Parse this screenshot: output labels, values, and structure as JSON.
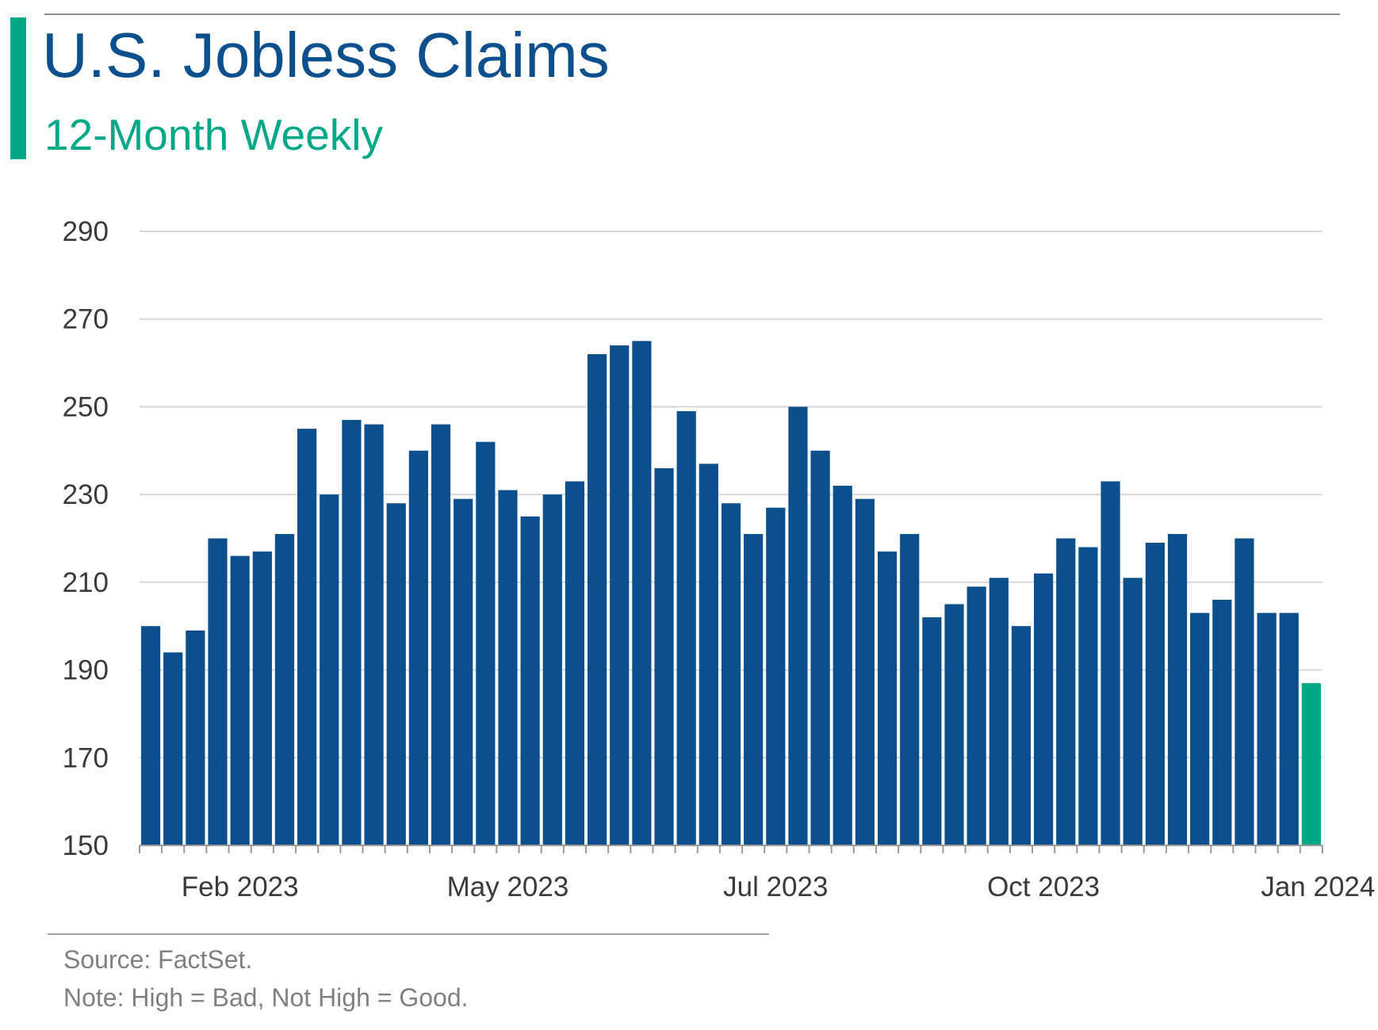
{
  "header": {
    "title": "U.S. Jobless Claims",
    "subtitle": "12-Month Weekly"
  },
  "footer": {
    "source": "Source: FactSet.",
    "note": "Note: High = Bad, Not High = Good."
  },
  "colors": {
    "bar": "#0b4f8c",
    "highlight": "#00a887",
    "accent": "#00a887",
    "grid": "#d9d9d9",
    "title": "#0b4f8c"
  },
  "chart_data": {
    "type": "bar",
    "title": "U.S. Jobless Claims",
    "subtitle": "12-Month Weekly",
    "xlabel": "",
    "ylabel": "",
    "ylim": [
      150,
      290
    ],
    "yticks": [
      150,
      170,
      190,
      210,
      230,
      250,
      270,
      290
    ],
    "xtick_labels": [
      "Feb 2023",
      "May 2023",
      "Jul 2023",
      "Oct 2023",
      "Jan 2024"
    ],
    "grid": true,
    "values": [
      200,
      194,
      199,
      220,
      216,
      217,
      221,
      245,
      230,
      247,
      246,
      228,
      240,
      246,
      229,
      242,
      231,
      225,
      230,
      233,
      262,
      264,
      265,
      236,
      249,
      237,
      228,
      221,
      227,
      250,
      240,
      232,
      229,
      217,
      221,
      202,
      205,
      209,
      211,
      200,
      212,
      220,
      218,
      233,
      211,
      219,
      221,
      203,
      206,
      220,
      203,
      203,
      187
    ],
    "highlight_last": true
  }
}
